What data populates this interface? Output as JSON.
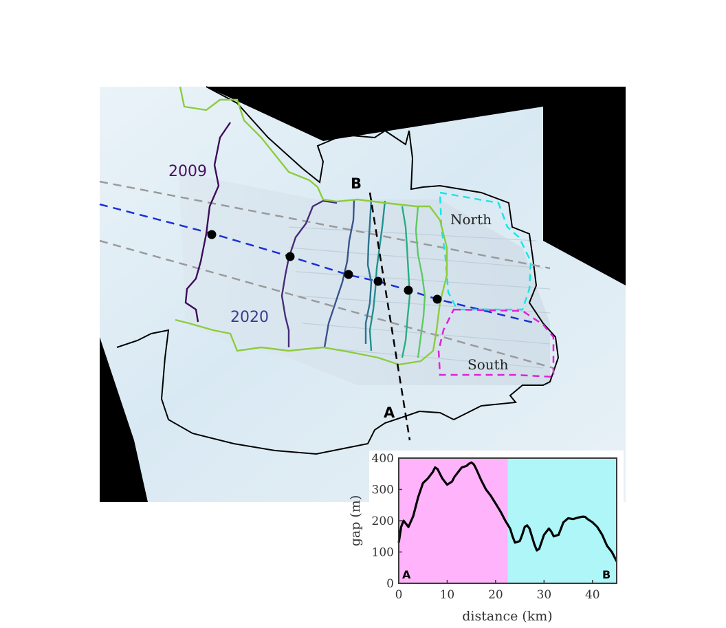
{
  "map": {
    "labels": {
      "year_old": "2009",
      "year_new": "2020",
      "north": "North",
      "south": "South",
      "point_a": "A",
      "point_b": "B"
    },
    "colors": {
      "background_black": "#000000",
      "ice": "#dfeef6",
      "profile_line": "#000000",
      "flowline_center": "#1a2fd6",
      "flowline_side": "#9a9a9a",
      "north_box": "#18e6e6",
      "south_box": "#e020d8",
      "outline": "#000000",
      "front_2009": "#3d0c5a",
      "front_2020": "#8ccc3c",
      "label_2009": "#4a1060",
      "label_2020": "#3c3c8c",
      "front_gradient": [
        "#3d0c5a",
        "#472c7a",
        "#3b528b",
        "#2c728e",
        "#21918c",
        "#28ae80",
        "#5ec962",
        "#8ccc3c"
      ]
    },
    "markers": {
      "count": 6,
      "icon": "filled-circle"
    }
  },
  "chart_data": {
    "type": "line",
    "xlabel": "distance (km)",
    "ylabel": "gap (m)",
    "xlim": [
      0,
      45
    ],
    "ylim": [
      0,
      400
    ],
    "xticks": [
      0,
      10,
      20,
      30,
      40
    ],
    "yticks": [
      0,
      100,
      200,
      300,
      400
    ],
    "grid": false,
    "corner_labels": {
      "left": "A",
      "right": "B"
    },
    "regions": [
      {
        "x_range": [
          0,
          22.5
        ],
        "color": "#ffb3fb"
      },
      {
        "x_range": [
          22.5,
          45
        ],
        "color": "#aef6f8"
      }
    ],
    "series": [
      {
        "color": "#000000",
        "x": [
          0,
          0.5,
          1,
          1.5,
          2,
          3,
          4,
          5,
          6,
          7,
          7.5,
          8,
          8.5,
          9,
          10,
          11,
          11.5,
          12,
          13,
          14,
          14.5,
          15,
          15.5,
          16,
          17,
          18,
          19,
          20,
          21,
          22,
          23,
          23.5,
          24,
          25,
          25.5,
          26,
          26.5,
          27,
          28,
          28.5,
          29,
          30,
          31,
          31.5,
          32,
          33,
          33.5,
          34,
          35,
          36,
          37,
          38,
          38.5,
          39,
          40,
          41,
          42,
          43,
          44,
          45
        ],
        "y": [
          130,
          180,
          200,
          190,
          180,
          215,
          275,
          320,
          335,
          355,
          370,
          365,
          350,
          335,
          315,
          325,
          340,
          350,
          370,
          375,
          382,
          386,
          380,
          365,
          330,
          300,
          280,
          255,
          230,
          200,
          175,
          150,
          130,
          135,
          155,
          180,
          185,
          175,
          125,
          105,
          110,
          155,
          175,
          165,
          150,
          155,
          175,
          195,
          208,
          205,
          210,
          213,
          212,
          205,
          195,
          180,
          155,
          120,
          100,
          70
        ]
      }
    ]
  }
}
